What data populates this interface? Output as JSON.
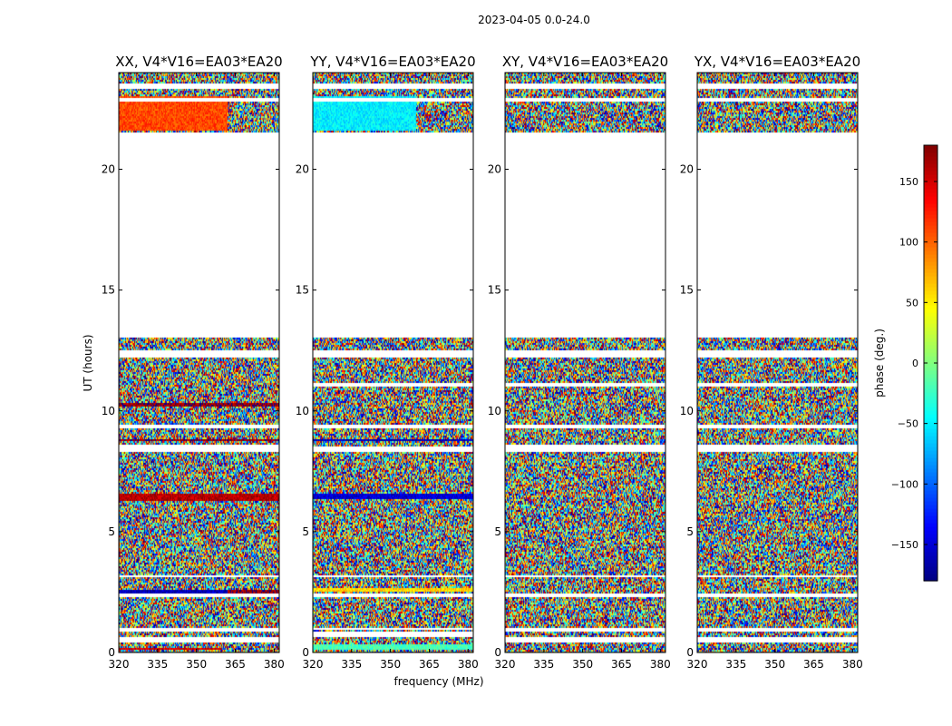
{
  "chart_data": {
    "type": "heatmap",
    "title": "2023-04-05 0.0-24.0",
    "xlabel": "frequency (MHz)",
    "ylabel": "UT (hours)",
    "xlim": [
      320,
      382
    ],
    "ylim": [
      0,
      24
    ],
    "x_ticks": [
      320,
      335,
      350,
      365,
      380
    ],
    "y_ticks": [
      0,
      5,
      10,
      15,
      20
    ],
    "panels": [
      {
        "title": "XX, V4*V16=EA03*EA20",
        "blank_bands": [
          [
            0.45,
            0.62
          ],
          [
            0.9,
            1.0
          ],
          [
            2.3,
            2.42
          ],
          [
            3.1,
            3.2
          ],
          [
            8.3,
            8.58
          ],
          [
            9.3,
            9.4
          ],
          [
            12.2,
            12.5
          ],
          [
            13.0,
            21.55
          ],
          [
            22.8,
            22.92
          ],
          [
            23.35,
            23.55
          ]
        ],
        "coherent_bands": [
          {
            "y": [
              0.1,
              0.22
            ],
            "phase": 150,
            "until_freq": 360
          },
          {
            "y": [
              2.45,
              2.6
            ],
            "phase": -160,
            "until_freq": 362
          },
          {
            "y": [
              2.45,
              2.6
            ],
            "phase": 170,
            "from_freq": 362
          },
          {
            "y": [
              6.3,
              6.55
            ],
            "phase": 160
          },
          {
            "y": [
              8.75,
              8.85
            ],
            "phase": 170
          },
          {
            "y": [
              10.2,
              10.3
            ],
            "phase": 170
          },
          {
            "y": [
              21.6,
              23.0
            ],
            "phase": 110,
            "until_freq": 362
          }
        ]
      },
      {
        "title": "YY, V4*V16=EA03*EA20",
        "blank_bands": [
          [
            0.62,
            0.85
          ],
          [
            0.92,
            1.0
          ],
          [
            2.3,
            2.42
          ],
          [
            3.1,
            3.2
          ],
          [
            8.3,
            8.55
          ],
          [
            9.3,
            9.4
          ],
          [
            11.0,
            11.15
          ],
          [
            12.2,
            12.5
          ],
          [
            13.0,
            21.55
          ],
          [
            22.8,
            22.92
          ],
          [
            23.35,
            23.55
          ]
        ],
        "coherent_bands": [
          {
            "y": [
              0.1,
              0.35
            ],
            "phase": -20
          },
          {
            "y": [
              2.5,
              2.65
            ],
            "phase": 60
          },
          {
            "y": [
              6.35,
              6.55
            ],
            "phase": -150
          },
          {
            "y": [
              8.75,
              8.85
            ],
            "phase": -160
          },
          {
            "y": [
              21.6,
              23.0
            ],
            "phase": -50,
            "until_freq": 360
          }
        ]
      },
      {
        "title": "XY, V4*V16=EA03*EA20",
        "blank_bands": [
          [
            0.45,
            0.62
          ],
          [
            0.9,
            1.0
          ],
          [
            2.3,
            2.42
          ],
          [
            3.1,
            3.2
          ],
          [
            8.3,
            8.58
          ],
          [
            9.3,
            9.4
          ],
          [
            11.0,
            11.15
          ],
          [
            12.2,
            12.5
          ],
          [
            13.0,
            21.55
          ],
          [
            22.8,
            22.92
          ],
          [
            23.35,
            23.55
          ]
        ],
        "coherent_bands": []
      },
      {
        "title": "YX, V4*V16=EA03*EA20",
        "blank_bands": [
          [
            0.45,
            0.62
          ],
          [
            0.9,
            1.0
          ],
          [
            2.3,
            2.42
          ],
          [
            3.1,
            3.2
          ],
          [
            8.3,
            8.58
          ],
          [
            9.3,
            9.4
          ],
          [
            11.0,
            11.15
          ],
          [
            12.2,
            12.5
          ],
          [
            13.0,
            21.55
          ],
          [
            22.8,
            22.92
          ],
          [
            23.35,
            23.55
          ]
        ],
        "coherent_bands": []
      }
    ],
    "colorbar": {
      "label": "phase (deg.)",
      "range": [
        -180,
        180
      ],
      "ticks": [
        -150,
        -100,
        -50,
        0,
        50,
        100,
        150
      ],
      "tick_labels": [
        "−150",
        "−100",
        "−50",
        "0",
        "50",
        "100",
        "150"
      ],
      "colormap": "jet"
    }
  }
}
